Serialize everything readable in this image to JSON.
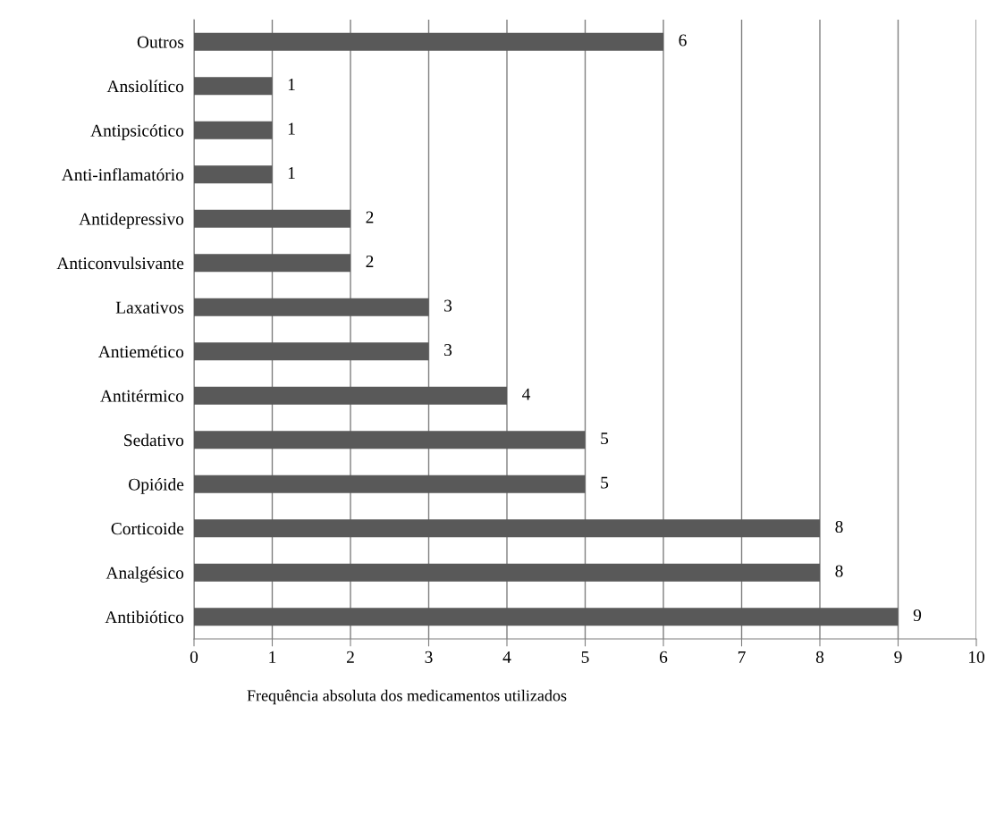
{
  "chart_data": {
    "type": "bar",
    "orientation": "horizontal",
    "annotations": [
      "Frequência absoluta dos medicamentos utilizados"
    ],
    "categories": [
      "Outros",
      "Ansiolítico",
      "Antipsicótico",
      "Anti-inflamatório",
      "Antidepressivo",
      "Anticonvulsivante",
      "Laxativos",
      "Antiemético",
      "Antitérmico",
      "Sedativo",
      "Opióide",
      "Corticoide",
      "Analgésico",
      "Antibiótico"
    ],
    "values": [
      6,
      1,
      1,
      1,
      2,
      2,
      3,
      3,
      4,
      5,
      5,
      8,
      8,
      9
    ],
    "color": "#595959",
    "xlim": [
      0,
      10
    ],
    "xticks": [
      0,
      1,
      2,
      3,
      4,
      5,
      6,
      7,
      8,
      9,
      10
    ],
    "grid": "x",
    "data_labels": true,
    "legend": false
  }
}
